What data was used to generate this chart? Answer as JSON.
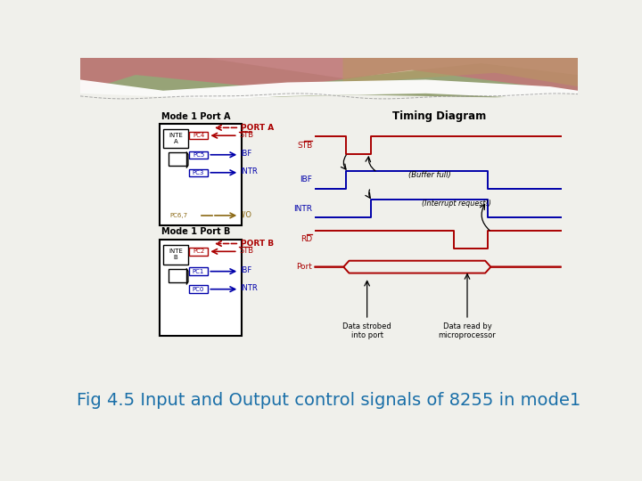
{
  "title": "Fig 4.5 Input and Output control signals of 8255 in mode1",
  "title_color": "#1a6fa8",
  "title_fontsize": 14,
  "bg_color": "#f0f0eb",
  "timing_title": "Timing Diagram",
  "port_a_label": "Mode 1 Port A",
  "port_b_label": "Mode 1 Port B",
  "red": "#aa0000",
  "blue": "#0000aa",
  "dark_gold": "#8B6914",
  "black": "#000000"
}
